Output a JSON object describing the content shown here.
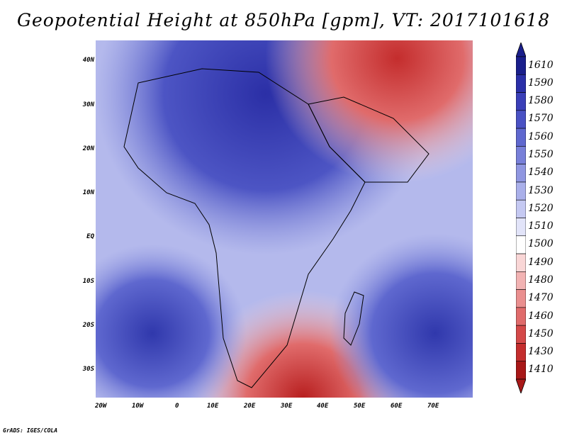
{
  "title": "Geopotential Height at 850hPa [gpm], VT: 2017101618",
  "credit": "GrADS: IGES/COLA",
  "lat_labels": [
    "40N",
    "30N",
    "20N",
    "10N",
    "EQ",
    "10S",
    "20S",
    "30S"
  ],
  "lon_labels": [
    "20W",
    "10W",
    "0",
    "10E",
    "20E",
    "30E",
    "40E",
    "50E",
    "60E",
    "70E"
  ],
  "colorbar": {
    "labels": [
      "1610",
      "1590",
      "1580",
      "1570",
      "1560",
      "1550",
      "1540",
      "1530",
      "1520",
      "1510",
      "1500",
      "1490",
      "1480",
      "1470",
      "1460",
      "1450",
      "1430",
      "1410"
    ],
    "colors": [
      "#1a1f8c",
      "#2a2fa8",
      "#3a3fb8",
      "#4a52c4",
      "#5f68cf",
      "#7880d9",
      "#9097e1",
      "#aab0ea",
      "#c5c9f2",
      "#e2e4f9",
      "#ffffff",
      "#f9d6d6",
      "#f2b3b3",
      "#ea8f8f",
      "#e06b6b",
      "#d44949",
      "#c42d2d",
      "#a81818"
    ]
  }
}
